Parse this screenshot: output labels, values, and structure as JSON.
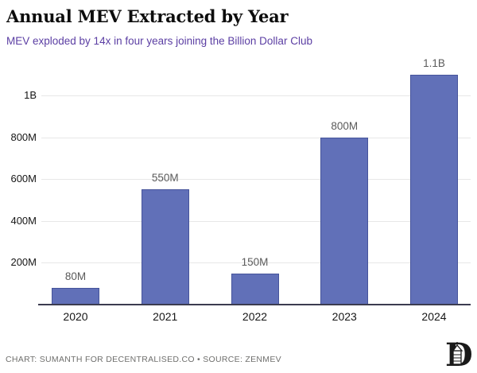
{
  "header": {
    "title": "Annual MEV Extracted by Year",
    "subtitle": "MEV exploded by 14x in four years joining the Billion Dollar Club"
  },
  "chart_data": {
    "type": "bar",
    "title": "Annual MEV Extracted by Year",
    "subtitle": "MEV exploded by 14x in four years joining the Billion Dollar Club",
    "categories": [
      "2020",
      "2021",
      "2022",
      "2023",
      "2024"
    ],
    "values_millions": [
      80,
      550,
      150,
      800,
      1100
    ],
    "bar_labels": [
      "80M",
      "550M",
      "150M",
      "800M",
      "1.1B"
    ],
    "yticks": [
      {
        "value": 200,
        "label": "200M"
      },
      {
        "value": 400,
        "label": "400M"
      },
      {
        "value": 600,
        "label": "600M"
      },
      {
        "value": 800,
        "label": "800M"
      },
      {
        "value": 1000,
        "label": "1B"
      }
    ],
    "ylim": [
      0,
      1150
    ],
    "grid": true,
    "legend": false,
    "xlabel": "",
    "ylabel": ""
  },
  "colors": {
    "bar_fill": "#6170b8",
    "bar_border": "#46549b",
    "subtitle_accent": "#5b3ea3",
    "gridline": "#e7e7e7",
    "axis": "#3c3c50",
    "value_label": "#5a5a5a",
    "tick_label": "#161616",
    "footer_text": "#6f6f6d"
  },
  "footer": {
    "credit": "CHART: SUMANTH FOR DECENTRALISED.CO • SOURCE: ZENMEV"
  },
  "icons": {
    "logo": "decentralised-d-monogram-icon"
  }
}
